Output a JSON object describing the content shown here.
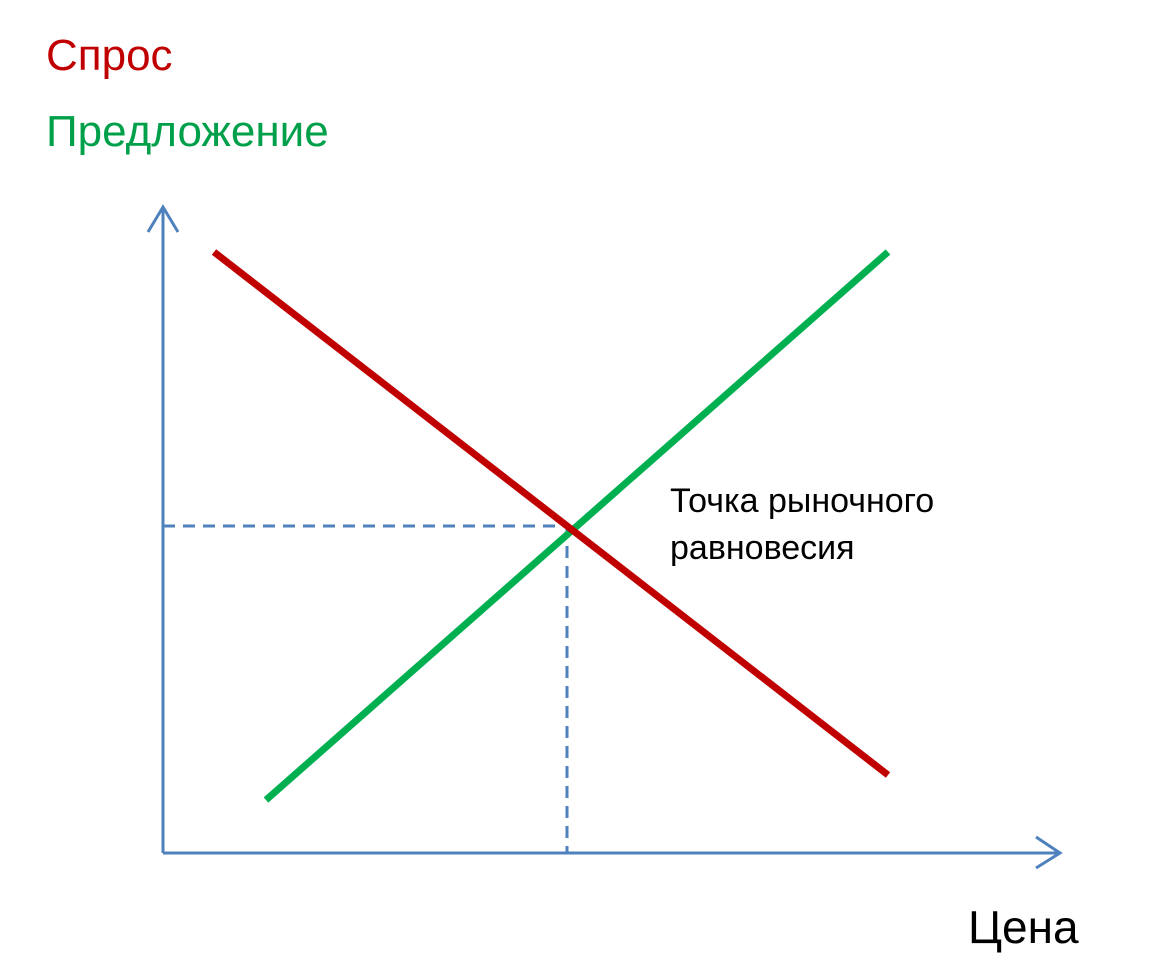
{
  "legend": {
    "demand_label": "Спрос",
    "supply_label": "Предложение"
  },
  "annotations": {
    "equilibrium_line1": "Точка рыночного",
    "equilibrium_line2": "равновесия"
  },
  "axes": {
    "x_label": "Цена"
  },
  "colors": {
    "demand": "#c00000",
    "demand_label": "#c00000",
    "supply": "#00b050",
    "supply_label": "#00a04a",
    "axis": "#4f81bd",
    "guide": "#4f81bd"
  }
}
